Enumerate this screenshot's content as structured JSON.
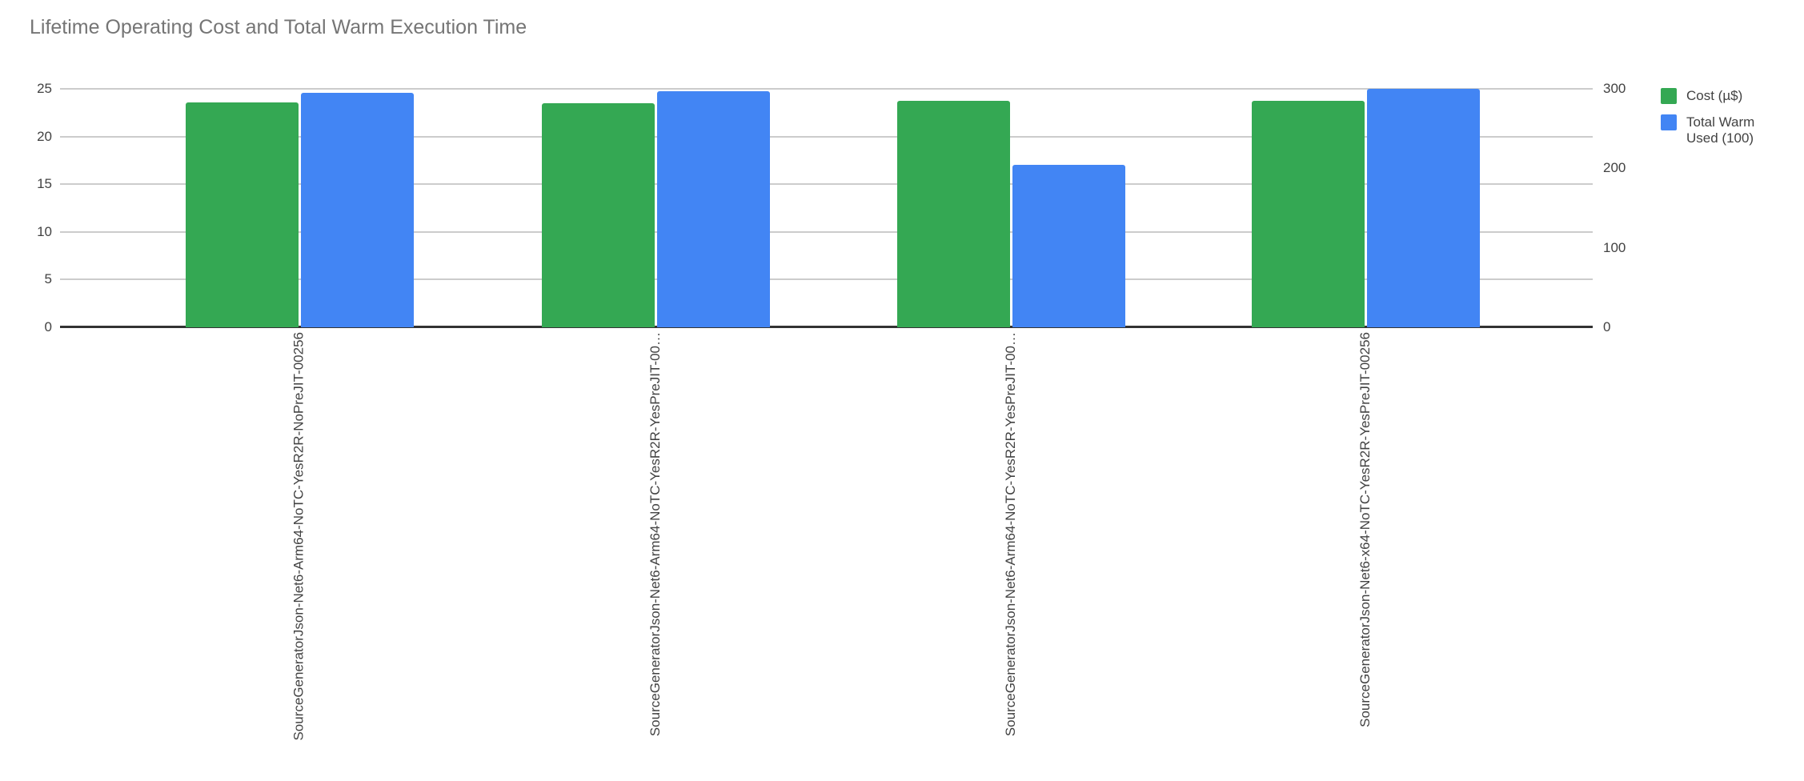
{
  "chart_data": {
    "type": "bar",
    "title": "Lifetime Operating Cost and Total Warm Execution Time",
    "categories": [
      "SourceGeneratorJson-Net6-Arm64-NoTC-YesR2R-NoPreJIT-00256",
      "SourceGeneratorJson-Net6-Arm64-NoTC-YesR2R-YesPreJIT-00…",
      "SourceGeneratorJson-Net6-Arm64-NoTC-YesR2R-YesPreJIT-00…",
      "SourceGeneratorJson-Net6-x64-NoTC-YesR2R-YesPreJIT-00256"
    ],
    "series": [
      {
        "name": "Cost (µ$)",
        "axis": "left",
        "color": "#34A853",
        "values": [
          23.6,
          23.5,
          23.7,
          23.7
        ]
      },
      {
        "name": "Total Warm Used (100)",
        "axis": "right",
        "color": "#4285F4",
        "values": [
          295,
          297,
          204,
          300
        ]
      }
    ],
    "left_axis": {
      "min": 0,
      "max": 25,
      "ticks": [
        0,
        5,
        10,
        15,
        20,
        25
      ]
    },
    "right_axis": {
      "min": 0,
      "max": 300,
      "ticks": [
        0,
        100,
        200,
        300
      ]
    },
    "legend": {
      "position": "right"
    },
    "grid": true,
    "colors": {
      "title": "#757575",
      "axis_label": "#424242",
      "gridline": "#cccccc",
      "baseline": "#333333",
      "background": "#ffffff"
    }
  }
}
